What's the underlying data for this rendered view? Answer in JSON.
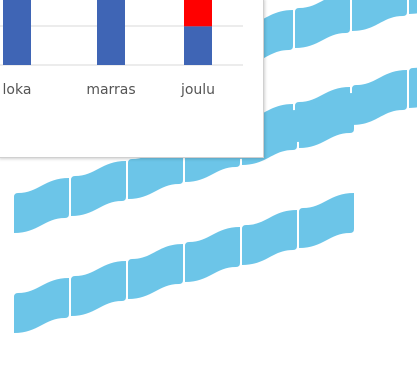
{
  "background": {
    "decoration": "light-blue-wave-tiles",
    "tile_color": "#6CC5E8"
  },
  "chart_data": {
    "type": "bar",
    "stacked": true,
    "categories": [
      "loka",
      "marras",
      "joulu"
    ],
    "series": [
      {
        "values": [
          1,
          1,
          0.45
        ],
        "color": "#3F65B5"
      },
      {
        "values": [
          0,
          0,
          0.55
        ],
        "color": "#FF0000"
      }
    ],
    "ylim": [
      0,
      1
    ],
    "grid": true,
    "gridline_color": "#D9D9D9"
  }
}
